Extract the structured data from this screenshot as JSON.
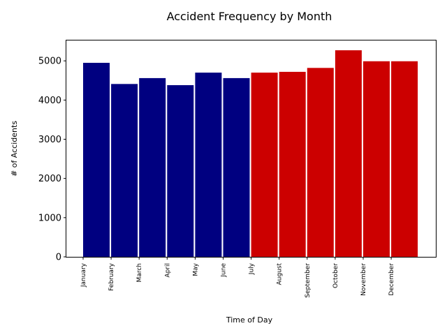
{
  "chart_data": {
    "type": "bar",
    "title": "Accident Frequency by Month",
    "xlabel": "Time of Day",
    "ylabel": "# of Accidents",
    "categories": [
      "January",
      "February",
      "March",
      "April",
      "May",
      "June",
      "July",
      "August",
      "September",
      "October",
      "November",
      "December"
    ],
    "values": [
      4950,
      4410,
      4560,
      4380,
      4700,
      4560,
      4700,
      4720,
      4820,
      5270,
      4990,
      4990
    ],
    "bar_colors": [
      "#000080",
      "#000080",
      "#000080",
      "#000080",
      "#000080",
      "#000080",
      "#cc0000",
      "#cc0000",
      "#cc0000",
      "#cc0000",
      "#cc0000",
      "#cc0000"
    ],
    "ylim": [
      0,
      5520
    ],
    "yticks": [
      0,
      1000,
      2000,
      3000,
      4000,
      5000
    ],
    "grid": false,
    "legend": "none"
  }
}
